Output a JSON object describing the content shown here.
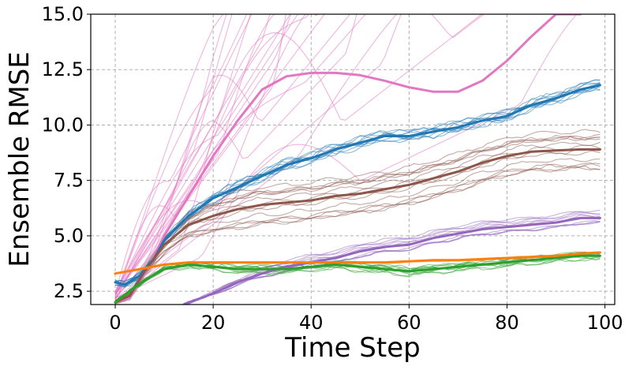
{
  "chart_data": {
    "type": "line",
    "xlabel": "Time Step",
    "ylabel": "Ensemble RMSE",
    "xlim": [
      -5,
      102
    ],
    "ylim": [
      1.9,
      15.0
    ],
    "x_ticks": [
      0,
      20,
      40,
      60,
      80,
      100
    ],
    "x_tick_labels": [
      "0",
      "20",
      "40",
      "60",
      "80",
      "100"
    ],
    "y_ticks": [
      2.5,
      5.0,
      7.5,
      10.0,
      12.5,
      15.0
    ],
    "y_tick_labels": [
      "2.5",
      "5.0",
      "7.5",
      "10.0",
      "12.5",
      "15.0"
    ],
    "grid": true,
    "legend": "none",
    "series": [
      {
        "color": "#e377c2",
        "x": [
          0,
          3,
          6,
          10,
          15,
          20,
          25,
          30,
          35,
          40,
          45,
          50,
          55,
          60,
          65,
          70,
          75,
          80,
          85,
          90,
          95
        ],
        "values": [
          2.0,
          2.2,
          3.3,
          5.0,
          6.8,
          8.6,
          10.2,
          11.6,
          12.2,
          12.35,
          12.35,
          12.25,
          12.0,
          11.7,
          11.5,
          11.5,
          12.0,
          12.9,
          14.0,
          15.0,
          15.0
        ]
      },
      {
        "color": "#1f77b4",
        "x": [
          0,
          2,
          5,
          8,
          10,
          15,
          20,
          25,
          30,
          35,
          40,
          45,
          50,
          55,
          60,
          65,
          70,
          75,
          80,
          85,
          90,
          95,
          99
        ],
        "values": [
          2.9,
          2.8,
          3.2,
          4.0,
          4.8,
          5.9,
          6.7,
          7.2,
          7.7,
          8.2,
          8.5,
          8.9,
          9.2,
          9.5,
          9.5,
          9.7,
          9.9,
          10.2,
          10.4,
          10.9,
          11.2,
          11.6,
          11.8
        ]
      },
      {
        "color": "#8c564b",
        "x": [
          0,
          3,
          6,
          10,
          15,
          20,
          25,
          30,
          35,
          40,
          45,
          50,
          55,
          60,
          65,
          70,
          75,
          80,
          85,
          90,
          95,
          99
        ],
        "values": [
          2.0,
          2.3,
          3.4,
          4.6,
          5.5,
          5.9,
          6.2,
          6.4,
          6.5,
          6.6,
          6.8,
          6.9,
          7.1,
          7.3,
          7.6,
          7.9,
          8.3,
          8.6,
          8.8,
          8.85,
          8.9,
          8.9
        ]
      },
      {
        "color": "#9467bd",
        "x": [
          14,
          20,
          25,
          30,
          35,
          40,
          45,
          50,
          55,
          60,
          65,
          70,
          75,
          80,
          85,
          90,
          95,
          99
        ],
        "values": [
          1.9,
          2.4,
          2.9,
          3.3,
          3.6,
          3.8,
          4.0,
          4.3,
          4.5,
          4.6,
          4.9,
          5.1,
          5.3,
          5.4,
          5.5,
          5.6,
          5.8,
          5.8
        ]
      },
      {
        "color": "#2ca02c",
        "x": [
          0,
          3,
          6,
          10,
          15,
          20,
          25,
          30,
          35,
          40,
          45,
          50,
          55,
          60,
          65,
          70,
          75,
          80,
          85,
          90,
          95,
          99
        ],
        "values": [
          2.0,
          2.5,
          3.0,
          3.5,
          3.7,
          3.6,
          3.5,
          3.5,
          3.5,
          3.6,
          3.7,
          3.6,
          3.5,
          3.4,
          3.5,
          3.6,
          3.7,
          3.8,
          3.9,
          4.0,
          4.1,
          4.1
        ]
      },
      {
        "color": "#ff7f0e",
        "x": [
          0,
          5,
          10,
          15,
          20,
          25,
          30,
          35,
          40,
          45,
          50,
          55,
          60,
          65,
          70,
          75,
          80,
          85,
          90,
          95,
          99
        ],
        "values": [
          3.3,
          3.5,
          3.7,
          3.8,
          3.8,
          3.8,
          3.8,
          3.8,
          3.8,
          3.8,
          3.8,
          3.8,
          3.85,
          3.9,
          3.9,
          3.95,
          4.0,
          4.05,
          4.1,
          4.2,
          4.25
        ]
      }
    ]
  }
}
